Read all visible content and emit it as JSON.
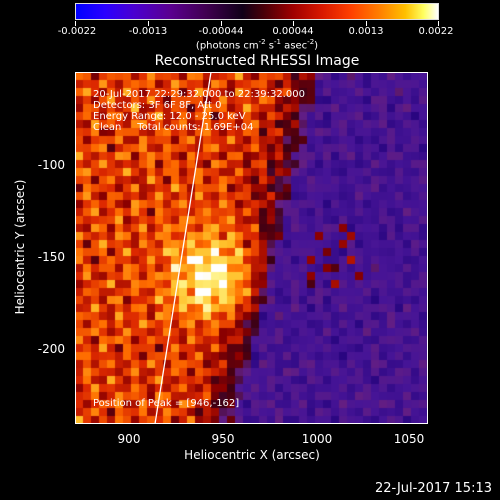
{
  "colorbar": {
    "ticks": [
      "-0.0022",
      "-0.0013",
      "-0.00044",
      "0.00044",
      "0.0013",
      "0.0022"
    ],
    "units_main": "(photons cm",
    "units_exp1": "-2",
    "units_mid": " s",
    "units_exp2": "-1",
    "units_mid2": " asec",
    "units_exp3": "-2",
    "units_end": ")"
  },
  "title": "Reconstructed RHESSI Image",
  "info": {
    "time": "20-Jul-2017 22:29:32.000 to 22:39:32.000",
    "detectors": "Detectors: 3F 6F 8F, Att 0",
    "energy": "Energy Range: 12.0 - 25.0 keV",
    "clean": "Clean     Total counts: 1.69E+04",
    "peak": "Position of Peak = [946,-162]"
  },
  "axes": {
    "x_label": "Heliocentric X (arcsec)",
    "y_label": "Heliocentric Y (arcsec)",
    "x_ticks": [
      "900",
      "950",
      "1000",
      "1050"
    ],
    "y_ticks": [
      "-100",
      "-150",
      "-200"
    ]
  },
  "timestamp": "22-Jul-2017 15:13",
  "colors": {
    "background": "#000000",
    "text": "#ffffff"
  }
}
